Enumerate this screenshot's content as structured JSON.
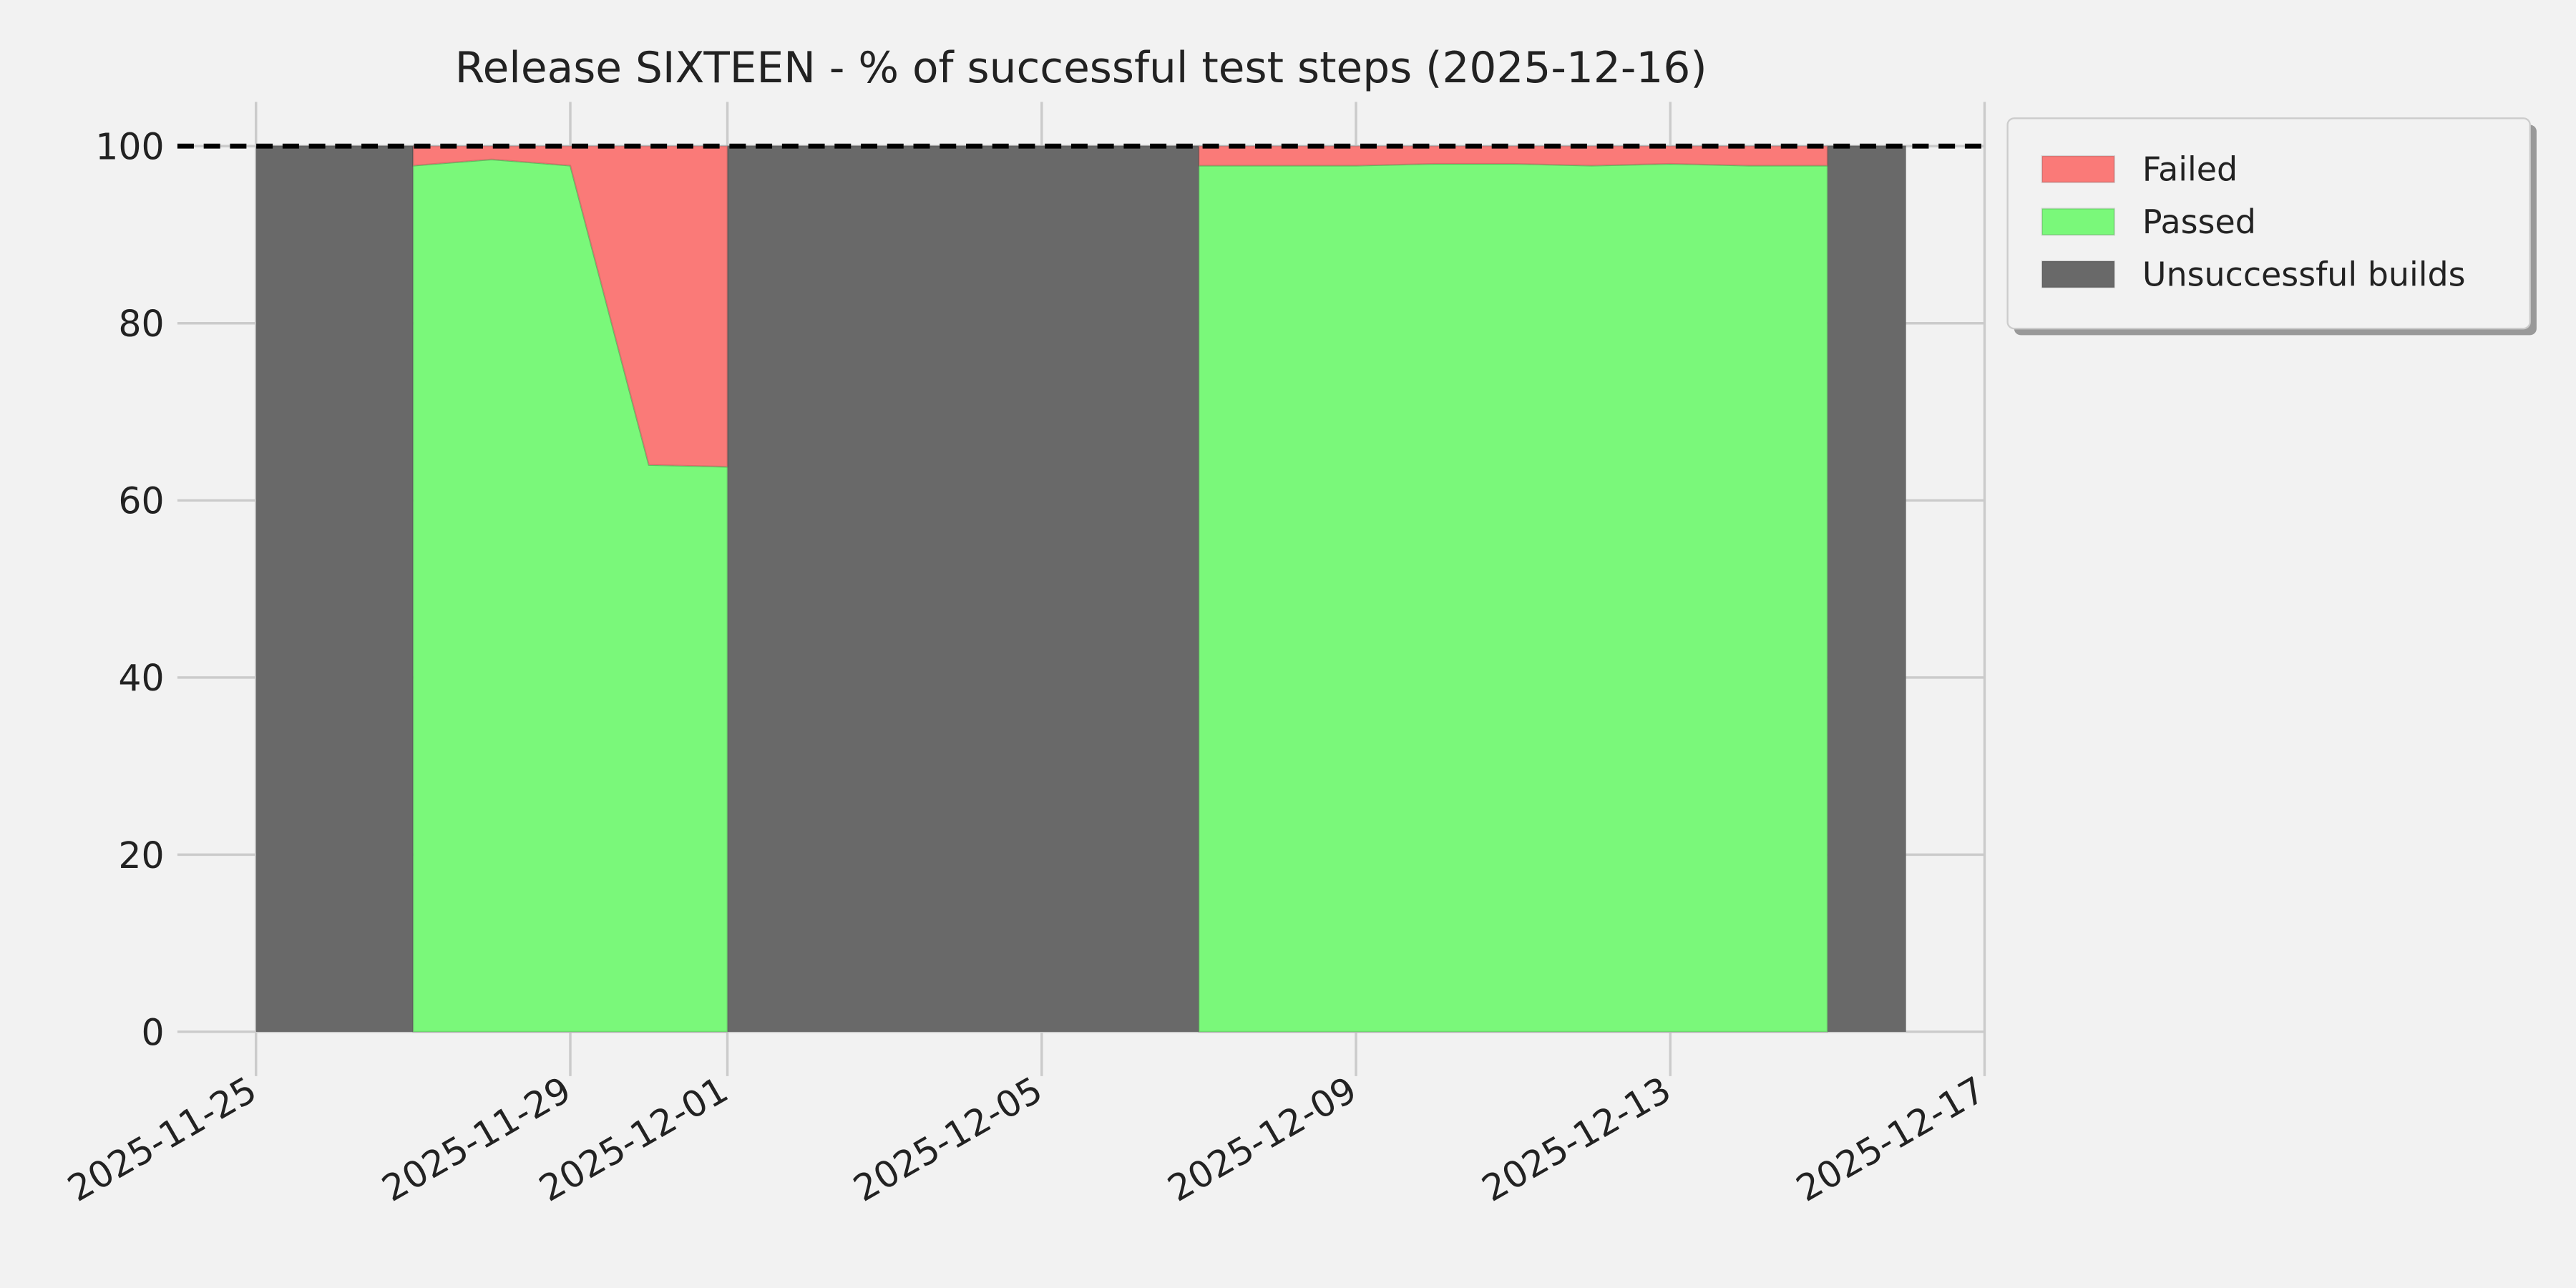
{
  "chart_data": {
    "type": "stacked_area",
    "title": "Release SIXTEEN - % of successful test steps (2025-12-16)",
    "x": [
      "2025-11-25",
      "2025-11-27",
      "2025-11-27",
      "2025-11-28",
      "2025-11-29",
      "2025-11-30",
      "2025-12-01",
      "2025-12-01",
      "2025-12-07",
      "2025-12-07",
      "2025-12-08",
      "2025-12-09",
      "2025-12-10",
      "2025-12-11",
      "2025-12-12",
      "2025-12-13",
      "2025-12-14",
      "2025-12-15",
      "2025-12-15",
      "2025-12-16"
    ],
    "series": [
      {
        "name": "Failed",
        "color": "#fa7a78",
        "values": [
          0,
          0,
          2.2,
          1.5,
          2.2,
          36,
          36.2,
          0,
          0,
          2.2,
          2.2,
          2.2,
          2,
          2,
          2.2,
          2,
          2.2,
          2.2,
          0,
          0
        ]
      },
      {
        "name": "Passed",
        "color": "#7af87a",
        "values": [
          0,
          0,
          97.8,
          98.5,
          97.8,
          64,
          63.8,
          0,
          0,
          97.8,
          97.8,
          97.8,
          98,
          98,
          97.8,
          98,
          97.8,
          97.8,
          0,
          0
        ]
      },
      {
        "name": "Unsuccessful builds",
        "color": "#696969",
        "values": [
          100,
          100,
          0,
          0,
          0,
          0,
          0,
          100,
          100,
          0,
          0,
          0,
          0,
          0,
          0,
          0,
          0,
          0,
          100,
          100
        ]
      }
    ],
    "reference_line": 100,
    "xlim": [
      "2025-11-24",
      "2025-12-17"
    ],
    "xticks": [
      "2025-11-25",
      "2025-11-29",
      "2025-12-01",
      "2025-12-05",
      "2025-12-09",
      "2025-12-13",
      "2025-12-17"
    ],
    "ylim": [
      -5,
      105
    ],
    "yticks": [
      0,
      20,
      40,
      60,
      80,
      100
    ],
    "grid": true,
    "legend": "outside-upper-right"
  }
}
